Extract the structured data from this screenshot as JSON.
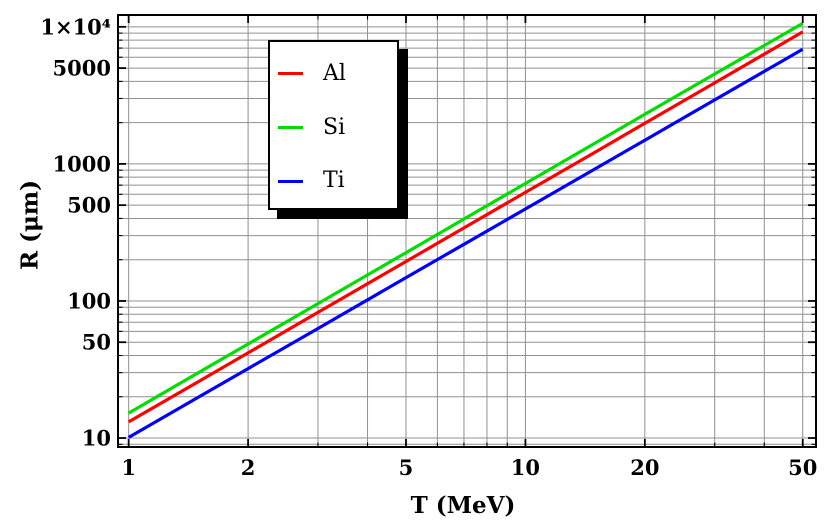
{
  "figure": {
    "background": "#ffffff",
    "frame_color": "#000000",
    "text_color": "#000000"
  },
  "chart_data": {
    "type": "line",
    "title": "",
    "xlabel": "T (MeV)",
    "ylabel": "R (μm)",
    "x_scale": "log",
    "y_scale": "log",
    "xlim": [
      0.94,
      54
    ],
    "ylim": [
      8.6,
      12200
    ],
    "grid": true,
    "grid_color": "#909090",
    "x": [
      1,
      1.5,
      2,
      3,
      5,
      7,
      10,
      15,
      20,
      30,
      50
    ],
    "series": [
      {
        "name": "Al",
        "color": "#ff0000",
        "values": [
          13.1,
          25.8,
          41.8,
          82.5,
          194,
          341,
          620,
          1220,
          1980,
          3900,
          9180
        ]
      },
      {
        "name": "Si",
        "color": "#00dd00",
        "values": [
          15.2,
          30.0,
          48.5,
          95.7,
          225,
          396,
          719,
          1420,
          2300,
          4530,
          10600
        ]
      },
      {
        "name": "Ti",
        "color": "#0000ff",
        "values": [
          10.1,
          19.9,
          32.1,
          63.0,
          148,
          259,
          469,
          922,
          1490,
          2930,
          6860
        ]
      }
    ],
    "x_ticks": [
      {
        "value": 1,
        "label": "1"
      },
      {
        "value": 2,
        "label": "2"
      },
      {
        "value": 5,
        "label": "5"
      },
      {
        "value": 10,
        "label": "10"
      },
      {
        "value": 20,
        "label": "20"
      },
      {
        "value": 50,
        "label": "50"
      }
    ],
    "y_ticks": [
      {
        "value": 10,
        "label": "10"
      },
      {
        "value": 50,
        "label": "50"
      },
      {
        "value": 100,
        "label": "100"
      },
      {
        "value": 500,
        "label": "500"
      },
      {
        "value": 1000,
        "label": "1000"
      },
      {
        "value": 5000,
        "label": "5000"
      },
      {
        "value": 10000,
        "label": "1×10⁴"
      }
    ],
    "legend": {
      "position": "upper-left-inside",
      "entries": [
        "Al",
        "Si",
        "Ti"
      ]
    }
  }
}
